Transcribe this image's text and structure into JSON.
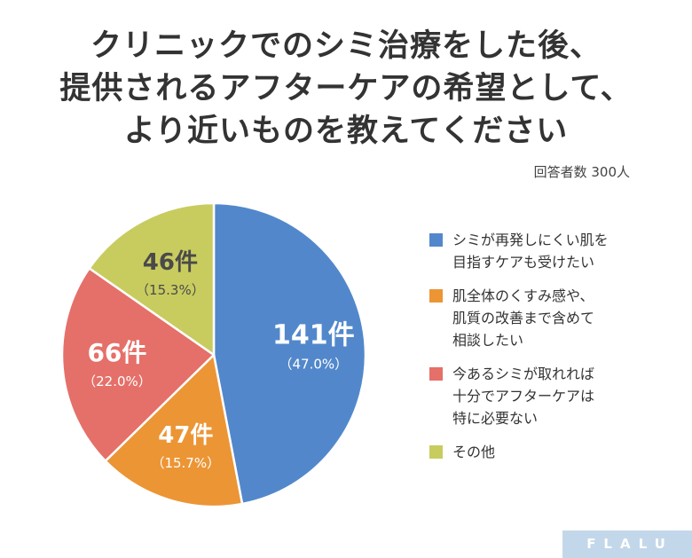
{
  "title_lines": [
    "クリニックでのシミ治療をした後、",
    "提供されるアフターケアの希望として、",
    "より近いものを教えてください"
  ],
  "subtitle": "回答者数 300人",
  "brand": "FLALU",
  "chart_data": {
    "type": "pie",
    "title": "クリニックでのシミ治療をした後、提供されるアフターケアの希望として、より近いものを教えてください",
    "subtitle": "回答者数 300人",
    "legend_position": "right",
    "slices": [
      {
        "value": 141,
        "count_label": "141件",
        "percent_label": "（47.0%）",
        "legend_lines": [
          "シミが再発しにくい肌を",
          "目指すケアも受けたい"
        ],
        "color": "#5288cb",
        "label_color": "#ffffff"
      },
      {
        "value": 47,
        "count_label": "47件",
        "percent_label": "（15.7%）",
        "legend_lines": [
          "肌全体のくすみ感や、",
          "肌質の改善まで含めて",
          "相談したい"
        ],
        "color": "#ec9535",
        "label_color": "#ffffff"
      },
      {
        "value": 66,
        "count_label": "66件",
        "percent_label": "（22.0%）",
        "legend_lines": [
          "今あるシミが取れれば",
          "十分でアフターケアは",
          "特に必要ない"
        ],
        "color": "#e57069",
        "label_color": "#ffffff"
      },
      {
        "value": 46,
        "count_label": "46件",
        "percent_label": "（15.3%）",
        "legend_lines": [
          "その他"
        ],
        "color": "#c8cc5f",
        "label_color": "#4a4a4a"
      }
    ]
  }
}
